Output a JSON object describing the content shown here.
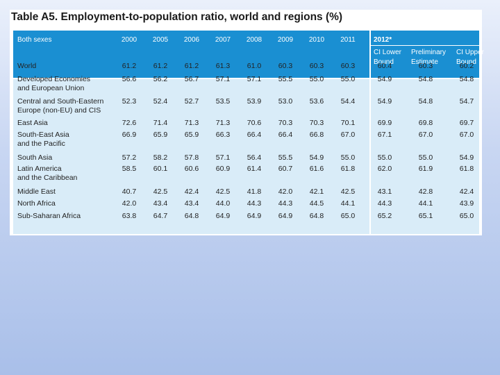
{
  "title": "Table A5.  Employment-to-population ratio, world and regions (%)",
  "header": {
    "row_label": "Both sexes",
    "years": [
      "2000",
      "2005",
      "2006",
      "2007",
      "2008",
      "2009",
      "2010",
      "2011"
    ],
    "year_2012": "2012*",
    "sub_headers": [
      "CI Lower Bound",
      "Preliminary Estimate",
      "CI Upper Bound"
    ]
  },
  "rows": [
    {
      "label": "World",
      "values": [
        "61.2",
        "61.2",
        "61.2",
        "61.3",
        "61.0",
        "60.3",
        "60.3",
        "60.3",
        "60.4",
        "60.3",
        "60.2"
      ]
    },
    {
      "label": "Developed Economies\nand European Union",
      "values": [
        "56.6",
        "56.2",
        "56.7",
        "57.1",
        "57.1",
        "55.5",
        "55.0",
        "55.0",
        "54.9",
        "54.8",
        "54.8"
      ]
    },
    {
      "label": "Central and South-Eastern\nEurope (non-EU) and CIS",
      "values": [
        "52.3",
        "52.4",
        "52.7",
        "53.5",
        "53.9",
        "53.0",
        "53.6",
        "54.4",
        "54.9",
        "54.8",
        "54.7"
      ]
    },
    {
      "label": "East Asia",
      "values": [
        "72.6",
        "71.4",
        "71.3",
        "71.3",
        "70.6",
        "70.3",
        "70.3",
        "70.1",
        "69.9",
        "69.8",
        "69.7"
      ]
    },
    {
      "label": "South-East Asia\nand the Pacific",
      "values": [
        "66.9",
        "65.9",
        "65.9",
        "66.3",
        "66.4",
        "66.4",
        "66.8",
        "67.0",
        "67.1",
        "67.0",
        "67.0"
      ]
    },
    {
      "label": "South Asia",
      "values": [
        "57.2",
        "58.2",
        "57.8",
        "57.1",
        "56.4",
        "55.5",
        "54.9",
        "55.0",
        "55.0",
        "55.0",
        "54.9"
      ]
    },
    {
      "label": "Latin America\nand the Caribbean",
      "values": [
        "58.5",
        "60.1",
        "60.6",
        "60.9",
        "61.4",
        "60.7",
        "61.6",
        "61.8",
        "62.0",
        "61.9",
        "61.8"
      ]
    },
    {
      "label": "Middle East",
      "values": [
        "40.7",
        "42.5",
        "42.4",
        "42.5",
        "41.8",
        "42.0",
        "42.1",
        "42.5",
        "43.1",
        "42.8",
        "42.4"
      ]
    },
    {
      "label": "North Africa",
      "values": [
        "42.0",
        "43.4",
        "43.4",
        "44.0",
        "44.3",
        "44.3",
        "44.5",
        "44.1",
        "44.3",
        "44.1",
        "43.9"
      ]
    },
    {
      "label": "Sub-Saharan Africa",
      "values": [
        "63.8",
        "64.7",
        "64.8",
        "64.9",
        "64.9",
        "64.9",
        "64.8",
        "65.0",
        "65.2",
        "65.1",
        "65.0"
      ]
    }
  ],
  "colors": {
    "header_bg": "#1a8fd2",
    "body_bg": "#d9ecf8"
  }
}
